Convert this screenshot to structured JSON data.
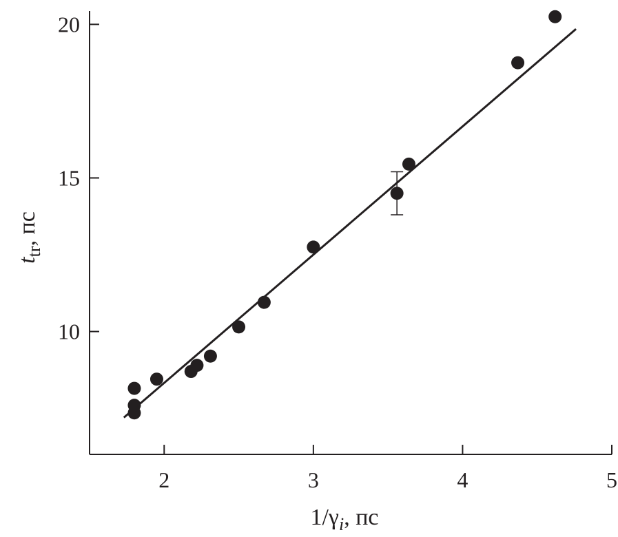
{
  "chart_data": {
    "type": "scatter",
    "title": "",
    "xlabel": {
      "base": "1/γ",
      "sub": "i",
      "unit": ", пс"
    },
    "ylabel": {
      "base": "t",
      "sub": "tr",
      "unit": ", пс"
    },
    "xlim": [
      1.5,
      5.0
    ],
    "ylim": [
      6.0,
      20.3
    ],
    "xticks": [
      2,
      3,
      4,
      5
    ],
    "yticks": [
      10,
      15,
      20
    ],
    "grid": false,
    "legend": "none",
    "series": [
      {
        "x": [
          1.8,
          1.8,
          1.8,
          1.95,
          2.18,
          2.22,
          2.31,
          2.5,
          2.67,
          3.0,
          3.56,
          3.64,
          4.37,
          4.62
        ],
        "y": [
          7.35,
          7.6,
          8.15,
          8.45,
          8.7,
          8.9,
          9.2,
          10.15,
          10.95,
          12.75,
          14.5,
          15.45,
          18.75,
          20.25
        ]
      }
    ],
    "error_bars": [
      {
        "x": 3.56,
        "y": 14.5,
        "low": 13.8,
        "high": 15.2
      }
    ],
    "fit_line": {
      "x": [
        1.73,
        4.76
      ],
      "y": [
        7.2,
        19.85
      ]
    }
  }
}
